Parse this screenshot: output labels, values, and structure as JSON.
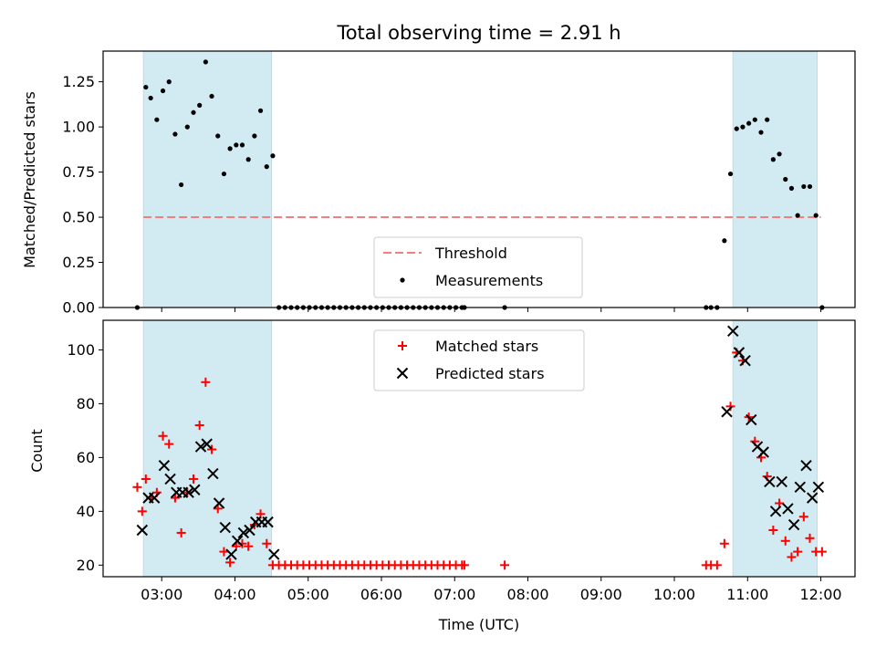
{
  "chart_data": [
    {
      "type": "scatter",
      "title": "Total observing time = 2.91 h",
      "xlabel": "",
      "ylabel": "Matched/Predicted stars",
      "ylim": [
        0,
        1.42
      ],
      "yticks": [
        0.0,
        0.25,
        0.5,
        0.75,
        1.0,
        1.25
      ],
      "ytick_labels": [
        "0.00",
        "0.25",
        "0.50",
        "0.75",
        "1.00",
        "1.25"
      ],
      "xlim": [
        "02:12",
        "12:28"
      ],
      "x_format": "HH:MM (UTC)",
      "grid": false,
      "shaded_spans": [
        {
          "start": "02:45",
          "end": "04:30",
          "color": "#add8e6"
        },
        {
          "start": "10:48",
          "end": "11:57",
          "color": "#add8e6"
        }
      ],
      "threshold": {
        "name": "Threshold",
        "y": 0.5,
        "start": "02:45",
        "end": "12:00",
        "color": "#f08080",
        "style": "dashed"
      },
      "series": [
        {
          "name": "Measurements",
          "marker": "dot",
          "color": "#000000",
          "x": [
            "02:40",
            "02:47",
            "02:51",
            "02:56",
            "03:01",
            "03:06",
            "03:11",
            "03:16",
            "03:21",
            "03:26",
            "03:31",
            "03:36",
            "03:41",
            "03:46",
            "03:51",
            "03:56",
            "04:01",
            "04:06",
            "04:11",
            "04:16",
            "04:21",
            "04:26",
            "04:31",
            "04:36",
            "04:41",
            "04:46",
            "04:51",
            "04:56",
            "05:01",
            "05:06",
            "05:11",
            "05:16",
            "05:21",
            "05:26",
            "05:31",
            "05:36",
            "05:41",
            "05:46",
            "05:51",
            "05:56",
            "06:01",
            "06:06",
            "06:11",
            "06:16",
            "06:21",
            "06:26",
            "06:31",
            "06:36",
            "06:41",
            "06:46",
            "06:51",
            "06:56",
            "07:01",
            "07:06",
            "07:08",
            "07:41",
            "10:26",
            "10:30",
            "10:35",
            "10:41",
            "10:46",
            "10:51",
            "10:56",
            "11:01",
            "11:06",
            "11:11",
            "11:16",
            "11:21",
            "11:26",
            "11:31",
            "11:36",
            "11:41",
            "11:46",
            "11:51",
            "11:56",
            "12:01"
          ],
          "y": [
            0.0,
            1.22,
            1.16,
            1.04,
            1.2,
            1.25,
            0.96,
            0.68,
            1.0,
            1.08,
            1.12,
            1.36,
            1.17,
            0.95,
            0.74,
            0.88,
            0.9,
            0.9,
            0.82,
            0.95,
            1.09,
            0.78,
            0.84,
            0.0,
            0.0,
            0.0,
            0.0,
            0.0,
            0.0,
            0.0,
            0.0,
            0.0,
            0.0,
            0.0,
            0.0,
            0.0,
            0.0,
            0.0,
            0.0,
            0.0,
            0.0,
            0.0,
            0.0,
            0.0,
            0.0,
            0.0,
            0.0,
            0.0,
            0.0,
            0.0,
            0.0,
            0.0,
            0.0,
            0.0,
            0.0,
            0.0,
            0.0,
            0.0,
            0.0,
            0.37,
            0.74,
            0.99,
            1.0,
            1.02,
            1.04,
            0.97,
            1.04,
            0.82,
            0.85,
            0.71,
            0.66,
            0.51,
            0.67,
            0.67,
            0.51,
            0.0
          ]
        }
      ]
    },
    {
      "type": "scatter",
      "title": "",
      "xlabel": "Time (UTC)",
      "ylabel": "Count",
      "ylim": [
        15.7,
        111
      ],
      "yticks": [
        20,
        40,
        60,
        80,
        100
      ],
      "ytick_labels": [
        "20",
        "40",
        "60",
        "80",
        "100"
      ],
      "xlim": [
        "02:12",
        "12:28"
      ],
      "xticks": [
        "03:00",
        "04:00",
        "05:00",
        "06:00",
        "07:00",
        "08:00",
        "09:00",
        "10:00",
        "11:00",
        "12:00"
      ],
      "xtick_labels": [
        "03:00",
        "04:00",
        "05:00",
        "06:00",
        "07:00",
        "08:00",
        "09:00",
        "10:00",
        "11:00",
        "12:00"
      ],
      "grid": false,
      "shaded_spans": [
        {
          "start": "02:45",
          "end": "04:30",
          "color": "#add8e6"
        },
        {
          "start": "10:48",
          "end": "11:57",
          "color": "#add8e6"
        }
      ],
      "series": [
        {
          "name": "Matched stars",
          "marker": "plus",
          "color": "#ff0000",
          "x": [
            "02:40",
            "02:44",
            "02:47",
            "02:51",
            "02:56",
            "03:01",
            "03:06",
            "03:11",
            "03:16",
            "03:21",
            "03:26",
            "03:31",
            "03:36",
            "03:41",
            "03:46",
            "03:51",
            "03:56",
            "04:01",
            "04:06",
            "04:11",
            "04:16",
            "04:21",
            "04:26",
            "04:31",
            "04:36",
            "04:41",
            "04:46",
            "04:51",
            "04:56",
            "05:01",
            "05:06",
            "05:11",
            "05:16",
            "05:21",
            "05:26",
            "05:31",
            "05:36",
            "05:41",
            "05:46",
            "05:51",
            "05:56",
            "06:01",
            "06:06",
            "06:11",
            "06:16",
            "06:21",
            "06:26",
            "06:31",
            "06:36",
            "06:41",
            "06:46",
            "06:51",
            "06:56",
            "07:01",
            "07:06",
            "07:08",
            "07:41",
            "10:26",
            "10:30",
            "10:35",
            "10:41",
            "10:46",
            "10:51",
            "10:56",
            "11:01",
            "11:06",
            "11:11",
            "11:16",
            "11:21",
            "11:26",
            "11:31",
            "11:36",
            "11:41",
            "11:46",
            "11:51",
            "11:56",
            "12:01"
          ],
          "y": [
            49,
            40,
            52,
            45,
            47,
            68,
            65,
            45,
            32,
            47,
            52,
            72,
            88,
            63,
            41,
            25,
            21,
            27,
            28,
            27,
            35,
            39,
            28,
            20,
            20,
            20,
            20,
            20,
            20,
            20,
            20,
            20,
            20,
            20,
            20,
            20,
            20,
            20,
            20,
            20,
            20,
            20,
            20,
            20,
            20,
            20,
            20,
            20,
            20,
            20,
            20,
            20,
            20,
            20,
            20,
            20,
            20,
            20,
            20,
            20,
            28,
            79,
            99,
            96,
            75,
            66,
            60,
            53,
            33,
            43,
            29,
            23,
            25,
            38,
            30,
            25,
            25
          ]
        },
        {
          "name": "Predicted stars",
          "marker": "x",
          "color": "#000000",
          "x": [
            "02:44",
            "02:49",
            "02:54",
            "03:02",
            "03:07",
            "03:12",
            "03:17",
            "03:22",
            "03:27",
            "03:32",
            "03:37",
            "03:42",
            "03:47",
            "03:52",
            "03:57",
            "04:02",
            "04:07",
            "04:12",
            "04:17",
            "04:22",
            "04:27",
            "04:32",
            "10:43",
            "10:48",
            "10:53",
            "10:58",
            "11:03",
            "11:08",
            "11:13",
            "11:18",
            "11:23",
            "11:28",
            "11:33",
            "11:38",
            "11:43",
            "11:48",
            "11:53",
            "11:58"
          ],
          "y": [
            33,
            45,
            45,
            57,
            52,
            47,
            47,
            47,
            48,
            64,
            65,
            54,
            43,
            34,
            24,
            29,
            32,
            33,
            36,
            36,
            36,
            24,
            77,
            107,
            99,
            96,
            74,
            64,
            62,
            51,
            40,
            51,
            41,
            35,
            49,
            57,
            45,
            49
          ]
        }
      ]
    }
  ]
}
